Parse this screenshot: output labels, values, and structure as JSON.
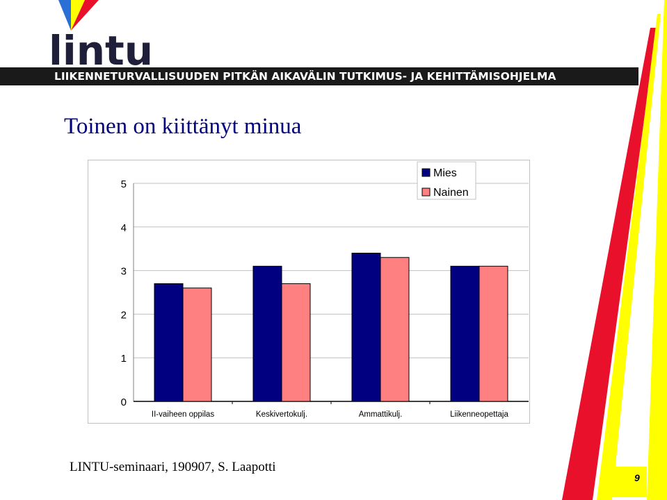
{
  "logo": {
    "wordmark": "lintu",
    "banner": "LIIKENNETURVALLISUUDEN PITKÄN AIKAVÄLIN TUTKIMUS- JA KEHITTÄMISOHJELMA"
  },
  "slide": {
    "title": "Toinen on kiittänyt minua",
    "footer": "LINTU-seminaari, 190907, S. Laapotti",
    "page_number": "9"
  },
  "colors": {
    "mies": "#000080",
    "nainen": "#ff8080",
    "stripe_blue": "#2a6fd6",
    "stripe_red": "#e8102a",
    "stripe_yellow": "#ffff00"
  },
  "chart_data": {
    "type": "bar",
    "categories": [
      "II-vaiheen oppilas",
      "Keskivertokulj.",
      "Ammattikulj.",
      "Liikenneopettaja"
    ],
    "series": [
      {
        "name": "Mies",
        "values": [
          2.7,
          3.1,
          3.4,
          3.1
        ]
      },
      {
        "name": "Nainen",
        "values": [
          2.6,
          2.7,
          3.3,
          3.1
        ]
      }
    ],
    "ylim": [
      0,
      5
    ],
    "yticks": [
      0,
      1,
      2,
      3,
      4,
      5
    ],
    "grid": true,
    "legend": "top-right",
    "title": "",
    "xlabel": "",
    "ylabel": ""
  }
}
